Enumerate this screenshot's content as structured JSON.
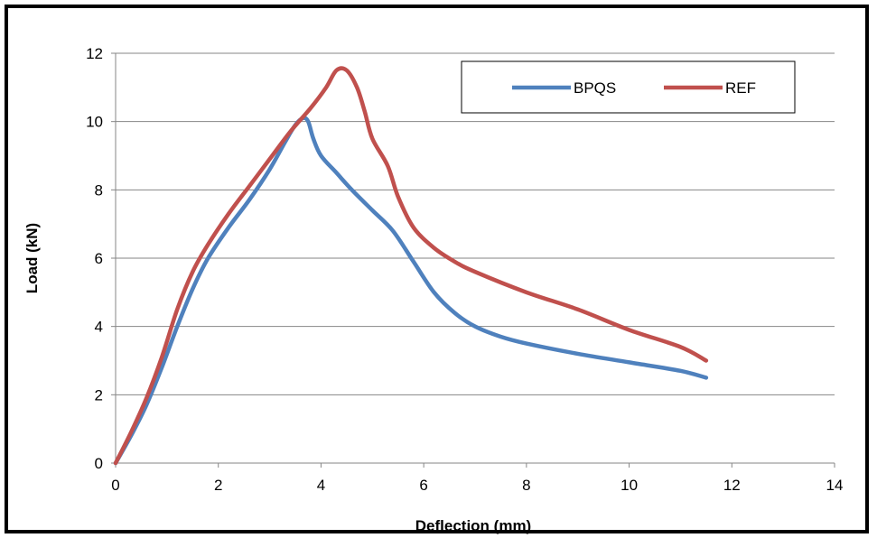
{
  "chart_data": {
    "type": "line",
    "title": "",
    "xlabel": "Deflection (mm)",
    "ylabel": "Load (kN)",
    "xlim": [
      0,
      14
    ],
    "ylim": [
      0,
      12
    ],
    "xticks": [
      0,
      2,
      4,
      6,
      8,
      10,
      12,
      14
    ],
    "yticks": [
      0,
      2,
      4,
      6,
      8,
      10,
      12
    ],
    "grid": "horizontal",
    "legend_position": "top-right",
    "series": [
      {
        "name": "BPQS",
        "color": "#4F81BD",
        "points": [
          [
            0,
            0
          ],
          [
            0.3,
            0.8
          ],
          [
            0.6,
            1.7
          ],
          [
            0.9,
            2.8
          ],
          [
            1.2,
            4.0
          ],
          [
            1.5,
            5.1
          ],
          [
            1.8,
            6.0
          ],
          [
            2.2,
            6.9
          ],
          [
            2.6,
            7.7
          ],
          [
            3.0,
            8.6
          ],
          [
            3.3,
            9.4
          ],
          [
            3.5,
            9.9
          ],
          [
            3.65,
            10.1
          ],
          [
            3.75,
            10.0
          ],
          [
            3.85,
            9.5
          ],
          [
            4.0,
            9.0
          ],
          [
            4.3,
            8.5
          ],
          [
            4.6,
            8.0
          ],
          [
            5.0,
            7.4
          ],
          [
            5.4,
            6.8
          ],
          [
            5.8,
            5.9
          ],
          [
            6.2,
            5.0
          ],
          [
            6.6,
            4.4
          ],
          [
            7.0,
            4.0
          ],
          [
            7.5,
            3.7
          ],
          [
            8.0,
            3.5
          ],
          [
            9.0,
            3.2
          ],
          [
            10.0,
            2.95
          ],
          [
            11.0,
            2.7
          ],
          [
            11.5,
            2.5
          ]
        ]
      },
      {
        "name": "REF",
        "color": "#C0504D",
        "points": [
          [
            0,
            0
          ],
          [
            0.3,
            0.9
          ],
          [
            0.6,
            1.9
          ],
          [
            0.9,
            3.1
          ],
          [
            1.2,
            4.5
          ],
          [
            1.5,
            5.6
          ],
          [
            1.8,
            6.4
          ],
          [
            2.2,
            7.3
          ],
          [
            2.6,
            8.1
          ],
          [
            3.0,
            8.9
          ],
          [
            3.4,
            9.7
          ],
          [
            3.8,
            10.4
          ],
          [
            4.1,
            11.0
          ],
          [
            4.3,
            11.5
          ],
          [
            4.5,
            11.5
          ],
          [
            4.7,
            11.0
          ],
          [
            4.85,
            10.3
          ],
          [
            5.0,
            9.5
          ],
          [
            5.3,
            8.7
          ],
          [
            5.5,
            7.8
          ],
          [
            5.8,
            6.9
          ],
          [
            6.2,
            6.3
          ],
          [
            6.6,
            5.9
          ],
          [
            7.0,
            5.6
          ],
          [
            8.0,
            5.0
          ],
          [
            9.0,
            4.5
          ],
          [
            10.0,
            3.9
          ],
          [
            11.0,
            3.4
          ],
          [
            11.5,
            3.0
          ]
        ]
      }
    ]
  }
}
